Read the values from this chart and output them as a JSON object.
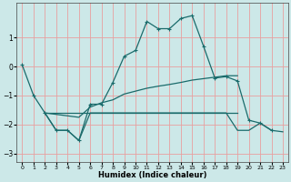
{
  "xlabel": "Humidex (Indice chaleur)",
  "background_color": "#cce8e8",
  "grid_color": "#e8a0a0",
  "line_color": "#1a6b6b",
  "xlim": [
    -0.5,
    23.5
  ],
  "ylim": [
    -3.3,
    2.2
  ],
  "yticks": [
    -3,
    -2,
    -1,
    0,
    1
  ],
  "xticks": [
    0,
    1,
    2,
    3,
    4,
    5,
    6,
    7,
    8,
    9,
    10,
    11,
    12,
    13,
    14,
    15,
    16,
    17,
    18,
    19,
    20,
    21,
    22,
    23
  ],
  "line1_x": [
    0,
    1,
    2,
    3,
    4,
    5,
    6,
    7,
    8,
    9,
    10,
    11,
    12,
    13,
    14,
    15,
    16,
    17,
    18,
    19,
    20,
    21,
    22
  ],
  "line1_y": [
    0.05,
    -1.0,
    -1.6,
    -2.2,
    -2.2,
    -2.55,
    -1.3,
    -1.3,
    -0.55,
    0.35,
    0.55,
    1.55,
    1.3,
    1.3,
    1.65,
    1.75,
    0.7,
    -0.4,
    -0.35,
    -0.5,
    -1.85,
    -1.95,
    -2.2
  ],
  "line2_x": [
    2,
    3,
    4,
    5,
    6,
    7,
    8,
    9,
    10,
    11,
    12,
    13,
    14,
    15,
    16,
    17,
    18,
    19
  ],
  "line2_y": [
    -1.6,
    -1.6,
    -1.6,
    -1.6,
    -1.6,
    -1.6,
    -1.6,
    -1.6,
    -1.6,
    -1.6,
    -1.6,
    -1.6,
    -1.6,
    -1.6,
    -1.6,
    -1.6,
    -1.6,
    -1.6
  ],
  "line3_x": [
    2,
    3,
    4,
    5,
    6,
    7,
    8,
    9,
    10,
    11,
    12,
    13,
    14,
    15,
    16,
    17,
    18,
    19
  ],
  "line3_y": [
    -1.6,
    -1.65,
    -1.7,
    -1.75,
    -1.4,
    -1.25,
    -1.15,
    -0.95,
    -0.85,
    -0.75,
    -0.68,
    -0.62,
    -0.55,
    -0.47,
    -0.42,
    -0.37,
    -0.32,
    -0.32
  ],
  "line4_x": [
    2,
    3,
    4,
    5,
    6,
    7,
    8,
    9,
    10,
    11,
    12,
    13,
    14,
    15,
    16,
    17,
    18,
    19,
    20,
    21,
    22,
    23
  ],
  "line4_y": [
    -1.6,
    -2.2,
    -2.2,
    -2.55,
    -1.6,
    -1.6,
    -1.6,
    -1.6,
    -1.6,
    -1.6,
    -1.6,
    -1.6,
    -1.6,
    -1.6,
    -1.6,
    -1.6,
    -1.6,
    -2.2,
    -2.2,
    -1.95,
    -2.2,
    -2.25
  ]
}
